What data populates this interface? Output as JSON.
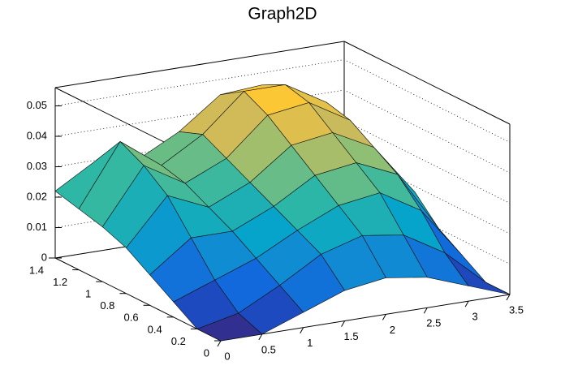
{
  "chart_data": {
    "type": "surface",
    "title": "Graph2D",
    "x": [
      0,
      0.5,
      1,
      1.5,
      2,
      2.5,
      3,
      3.5
    ],
    "y": [
      0,
      0.2,
      0.4,
      0.6,
      0.8,
      1,
      1.2,
      1.4
    ],
    "z": [
      [
        0,
        0,
        0.005,
        0.01,
        0.012,
        0.01,
        0.005,
        0
      ],
      [
        0,
        0.003,
        0.01,
        0.018,
        0.022,
        0.02,
        0.012,
        0
      ],
      [
        0.005,
        0.01,
        0.015,
        0.022,
        0.028,
        0.03,
        0.022,
        0.005
      ],
      [
        0.01,
        0.02,
        0.02,
        0.026,
        0.034,
        0.036,
        0.03,
        0.01
      ],
      [
        0.015,
        0.03,
        0.024,
        0.03,
        0.04,
        0.042,
        0.035,
        0.018
      ],
      [
        0.018,
        0.036,
        0.028,
        0.034,
        0.046,
        0.048,
        0.04,
        0.022
      ],
      [
        0.02,
        0.04,
        0.03,
        0.038,
        0.05,
        0.05,
        0.042,
        0.024
      ],
      [
        0.022,
        0.03,
        0.028,
        0.035,
        0.045,
        0.046,
        0.04,
        0.022
      ]
    ],
    "xlim": [
      0,
      3.5
    ],
    "ylim": [
      0,
      1.4
    ],
    "zlim": [
      0,
      0.056
    ],
    "xticks": [
      0,
      0.5,
      1,
      1.5,
      2,
      2.5,
      3,
      3.5
    ],
    "yticks": [
      0,
      0.2,
      0.4,
      0.6,
      0.8,
      1,
      1.2,
      1.4
    ],
    "zticks": [
      0,
      0.01,
      0.02,
      0.03,
      0.04,
      0.05
    ],
    "grid": true,
    "palette": [
      "#352a87",
      "#0f5cdd",
      "#1481d6",
      "#06a4ca",
      "#2eb7a4",
      "#87bf77",
      "#d1bb59",
      "#fec832",
      "#f9fb0e"
    ]
  }
}
